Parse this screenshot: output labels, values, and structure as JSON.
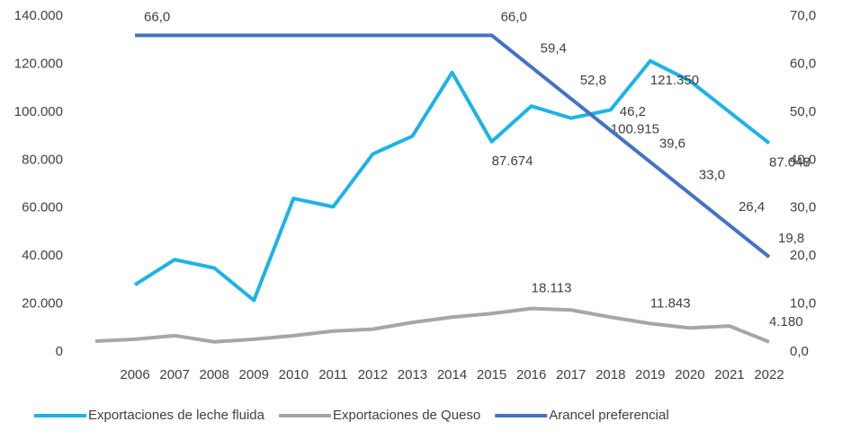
{
  "chart_data": {
    "type": "line",
    "categories": [
      null,
      "2006",
      "2007",
      "2008",
      "2009",
      "2010",
      "2011",
      "2012",
      "2013",
      "2014",
      "2015",
      "2016",
      "2017",
      "2018",
      "2019",
      "2020",
      "2021",
      "2022"
    ],
    "series": [
      {
        "name": "Exportaciones de leche fluida",
        "color": "#1db3e6",
        "values": [
          null,
          28000,
          38500,
          35000,
          21500,
          64000,
          60500,
          82500,
          90000,
          116500,
          87674,
          102500,
          97500,
          100915,
          121350,
          113000,
          100000,
          87048
        ],
        "value_labels": [
          null,
          null,
          null,
          null,
          null,
          null,
          null,
          null,
          null,
          null,
          "87.674",
          null,
          null,
          "100.915",
          "121.350",
          null,
          null,
          "87.048"
        ]
      },
      {
        "name": "Exportaciones de Queso",
        "color": "#a6a6a6",
        "values": [
          4500,
          5300,
          6800,
          4200,
          5300,
          6800,
          8700,
          9500,
          12300,
          14500,
          16000,
          18113,
          17500,
          14500,
          11843,
          10000,
          10800,
          4180
        ],
        "value_labels": [
          null,
          null,
          null,
          null,
          null,
          null,
          null,
          null,
          null,
          null,
          null,
          "18.113",
          null,
          null,
          "11.843",
          null,
          null,
          "4.180"
        ]
      },
      {
        "name": "Arancel preferencial",
        "color": "#4472c4",
        "axis": "y2",
        "values": [
          null,
          66,
          66,
          66,
          66,
          66,
          66,
          66,
          66,
          66,
          66,
          59.4,
          52.8,
          46.2,
          39.6,
          33,
          26.4,
          19.8
        ],
        "value_labels": [
          null,
          "66,0",
          null,
          null,
          null,
          null,
          null,
          null,
          null,
          null,
          "66,0",
          "59,4",
          "52,8",
          "46,2",
          "39,6",
          "33,0",
          "26,4",
          "19,8"
        ]
      }
    ],
    "ylim": [
      0,
      140000
    ],
    "yticks": [
      {
        "value": 0,
        "label": "0"
      },
      {
        "value": 20000,
        "label": "20.000"
      },
      {
        "value": 40000,
        "label": "40.000"
      },
      {
        "value": 60000,
        "label": "60.000"
      },
      {
        "value": 80000,
        "label": "80.000"
      },
      {
        "value": 100000,
        "label": "100.000"
      },
      {
        "value": 120000,
        "label": "120.000"
      },
      {
        "value": 140000,
        "label": "140.000"
      }
    ],
    "y2lim": [
      0,
      70
    ],
    "y2ticks": [
      {
        "value": 0,
        "label": "0,0"
      },
      {
        "value": 10,
        "label": "10,0"
      },
      {
        "value": 20,
        "label": "20,0"
      },
      {
        "value": 30,
        "label": "30,0"
      },
      {
        "value": 40,
        "label": "40,0"
      },
      {
        "value": 50,
        "label": "50,0"
      },
      {
        "value": 60,
        "label": "60,0"
      },
      {
        "value": 70,
        "label": "70,0"
      }
    ],
    "grid": false,
    "legend": "bottom"
  }
}
